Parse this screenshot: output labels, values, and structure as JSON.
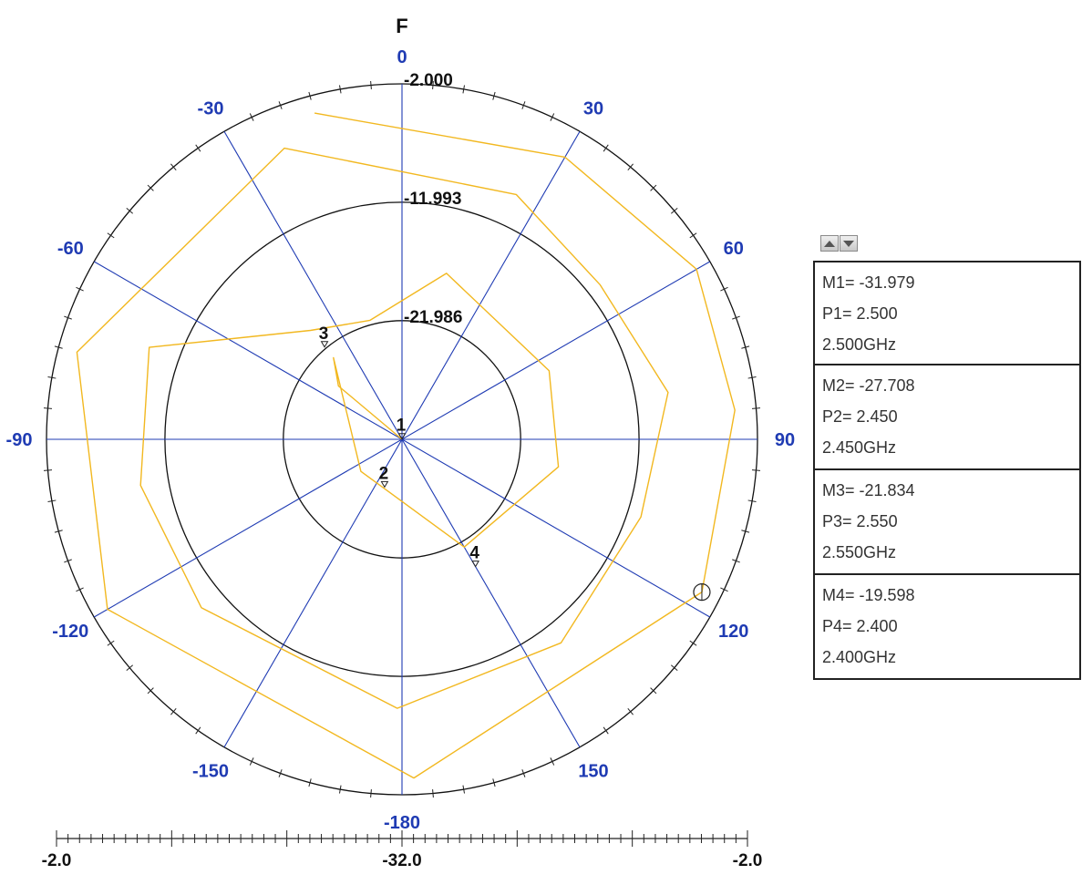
{
  "chart_data": {
    "type": "polar",
    "title": "F",
    "angle_ticks": [
      0,
      30,
      60,
      90,
      120,
      150,
      -180,
      -150,
      -120,
      -90,
      -60,
      -30
    ],
    "radial_scale": {
      "min": -32.0,
      "max": -2.0,
      "unit": "dB"
    },
    "ring_labels": [
      "-2.000",
      "-11.993",
      "-21.986"
    ],
    "scale_bar": {
      "left": "-2.0",
      "center": "-32.0",
      "right": "-2.0"
    },
    "series": [
      {
        "color": "#f2b820",
        "points": [
          {
            "angle": -15,
            "r": -3.5
          },
          {
            "angle": 30,
            "r": -4.5
          },
          {
            "angle": 60,
            "r": -3.3
          },
          {
            "angle": 85,
            "r": -3.8
          },
          {
            "angle": 117,
            "r": -3.6
          },
          {
            "angle": 178,
            "r": -3.4
          },
          {
            "angle": -120,
            "r": -3.3
          },
          {
            "angle": -75,
            "r": -3.6
          },
          {
            "angle": -22,
            "r": -5.5
          },
          {
            "angle": 25,
            "r": -9.2
          },
          {
            "angle": 52,
            "r": -10.8
          },
          {
            "angle": 80,
            "r": -9.2
          },
          {
            "angle": 108,
            "r": -10.8
          },
          {
            "angle": 142,
            "r": -10.2
          },
          {
            "angle": -179,
            "r": -9.3
          },
          {
            "angle": -130,
            "r": -9.9
          },
          {
            "angle": -100,
            "r": -9.6
          },
          {
            "angle": -70,
            "r": -9.3
          },
          {
            "angle": -40,
            "r": -20.0
          },
          {
            "angle": -15,
            "r": -21.6
          },
          {
            "angle": 15,
            "r": -17.5
          },
          {
            "angle": 65,
            "r": -18.3
          },
          {
            "angle": 100,
            "r": -18.6
          },
          {
            "angle": 150,
            "r": -21.5
          },
          {
            "angle": -160,
            "r": -27.6
          },
          {
            "angle": -128,
            "r": -27.6
          },
          {
            "angle": -40,
            "r": -23.0
          },
          {
            "angle": -50,
            "r": -25.0
          },
          {
            "angle": 0,
            "r": -32.0
          }
        ]
      }
    ],
    "markers": [
      {
        "label": "1",
        "angle": 0,
        "r": -31.979
      },
      {
        "label": "2",
        "angle": -160,
        "r": -27.708
      },
      {
        "label": "3",
        "angle": -40,
        "r": -21.834
      },
      {
        "label": "4",
        "angle": 150,
        "r": -19.598
      },
      {
        "label": "",
        "angle": 117,
        "r": -3.6,
        "symbol": "circle"
      }
    ]
  },
  "marker_panel": [
    {
      "m": "M1= -31.979",
      "p": "P1= 2.500",
      "f": "2.500GHz"
    },
    {
      "m": "M2= -27.708",
      "p": "P2= 2.450",
      "f": "2.450GHz"
    },
    {
      "m": "M3= -21.834",
      "p": "P3= 2.550",
      "f": "2.550GHz"
    },
    {
      "m": "M4= -19.598",
      "p": "P4= 2.400",
      "f": "2.400GHz"
    }
  ],
  "colors": {
    "grid_blue": "#1f3bb3",
    "trace": "#f2b820",
    "rings": "#111111"
  },
  "icons": {
    "scroll_up": "triangle-up-icon",
    "scroll_down": "triangle-down-icon"
  }
}
